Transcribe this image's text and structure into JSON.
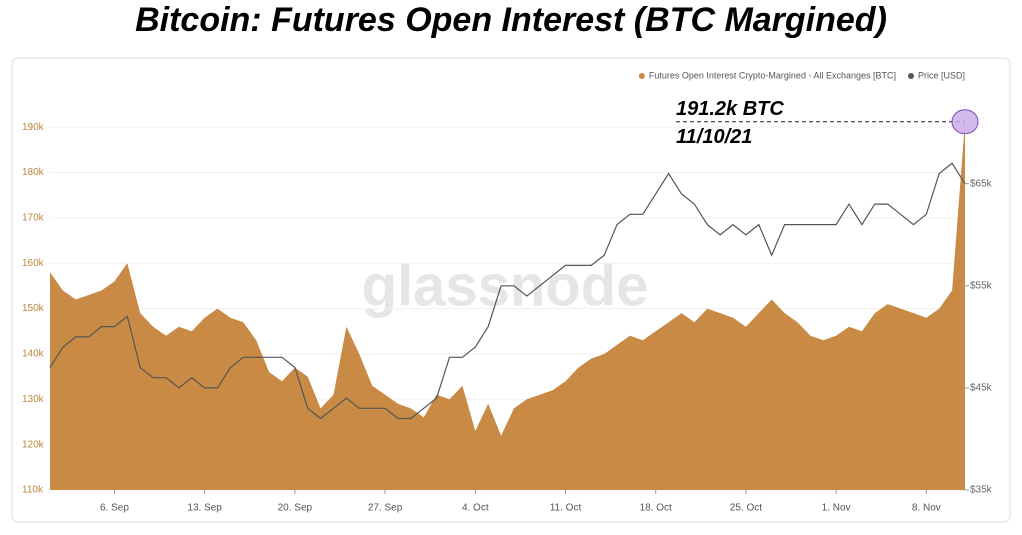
{
  "chart_data": {
    "type": "area_line",
    "title": "Bitcoin: Futures Open Interest (BTC Margined)",
    "watermark": "glassnode",
    "legend_position": "top-right",
    "annotations": [
      "191.2k BTC",
      "11/10/21"
    ],
    "categories": [
      null,
      null,
      null,
      null,
      null,
      "6. Sep",
      null,
      null,
      null,
      null,
      null,
      null,
      "13. Sep",
      null,
      null,
      null,
      null,
      null,
      null,
      "20. Sep",
      null,
      null,
      null,
      null,
      null,
      null,
      "27. Sep",
      null,
      null,
      null,
      null,
      null,
      null,
      "4. Oct",
      null,
      null,
      null,
      null,
      null,
      null,
      "11. Oct",
      null,
      null,
      null,
      null,
      null,
      null,
      "18. Oct",
      null,
      null,
      null,
      null,
      null,
      null,
      "25. Oct",
      null,
      null,
      null,
      null,
      null,
      null,
      "1. Nov",
      null,
      null,
      null,
      null,
      null,
      null,
      "8. Nov",
      null,
      null,
      null
    ],
    "ylim": [
      110000,
      196000
    ],
    "yticks": [
      {
        "value": 110000,
        "label": "110k"
      },
      {
        "value": 120000,
        "label": "120k"
      },
      {
        "value": 130000,
        "label": "130k"
      },
      {
        "value": 140000,
        "label": "140k"
      },
      {
        "value": 150000,
        "label": "150k"
      },
      {
        "value": 160000,
        "label": "160k"
      },
      {
        "value": 170000,
        "label": "170k"
      },
      {
        "value": 180000,
        "label": "180k"
      },
      {
        "value": 190000,
        "label": "190k"
      }
    ],
    "y2lim": [
      35000,
      73200
    ],
    "y2ticks": [
      {
        "value": 35000,
        "label": "$35k"
      },
      {
        "value": 45000,
        "label": "$45k"
      },
      {
        "value": 55000,
        "label": "$55k"
      },
      {
        "value": 65000,
        "label": "$65k"
      }
    ],
    "series": [
      {
        "name": "Futures Open Interest Crypto-Margined - All Exchanges [BTC]",
        "color": "#c98a45",
        "axis": "y",
        "values": [
          158000,
          154000,
          152000,
          153000,
          154000,
          156000,
          160000,
          149000,
          146000,
          144000,
          146000,
          145000,
          148000,
          150000,
          148000,
          147000,
          143000,
          136000,
          134000,
          137000,
          135000,
          128000,
          131000,
          146000,
          140000,
          133000,
          131000,
          129000,
          128000,
          126000,
          131000,
          130000,
          133000,
          123000,
          129000,
          122000,
          128000,
          130000,
          131000,
          132000,
          134000,
          137000,
          139000,
          140000,
          142000,
          144000,
          143000,
          145000,
          147000,
          149000,
          147000,
          150000,
          149000,
          148000,
          146000,
          149000,
          152000,
          149000,
          147000,
          144000,
          143000,
          144000,
          146000,
          145000,
          149000,
          151000,
          150000,
          149000,
          148000,
          150000,
          154000,
          191200
        ]
      },
      {
        "name": "Price [USD]",
        "color": "#555555",
        "axis": "y2",
        "values": [
          47000,
          49000,
          50000,
          50000,
          51000,
          51000,
          52000,
          47000,
          46000,
          46000,
          45000,
          46000,
          45000,
          45000,
          47000,
          48000,
          48000,
          48000,
          48000,
          47000,
          43000,
          42000,
          43000,
          44000,
          43000,
          43000,
          43000,
          42000,
          42000,
          43000,
          44000,
          48000,
          48000,
          49000,
          51000,
          55000,
          55000,
          54000,
          55000,
          56000,
          57000,
          57000,
          57000,
          58000,
          61000,
          62000,
          62000,
          64000,
          66000,
          64000,
          63000,
          61000,
          60000,
          61000,
          60000,
          61000,
          58000,
          61000,
          61000,
          61000,
          61000,
          61000,
          63000,
          61000,
          63000,
          63000,
          62000,
          61000,
          62000,
          66000,
          67000,
          65000
        ]
      }
    ]
  }
}
